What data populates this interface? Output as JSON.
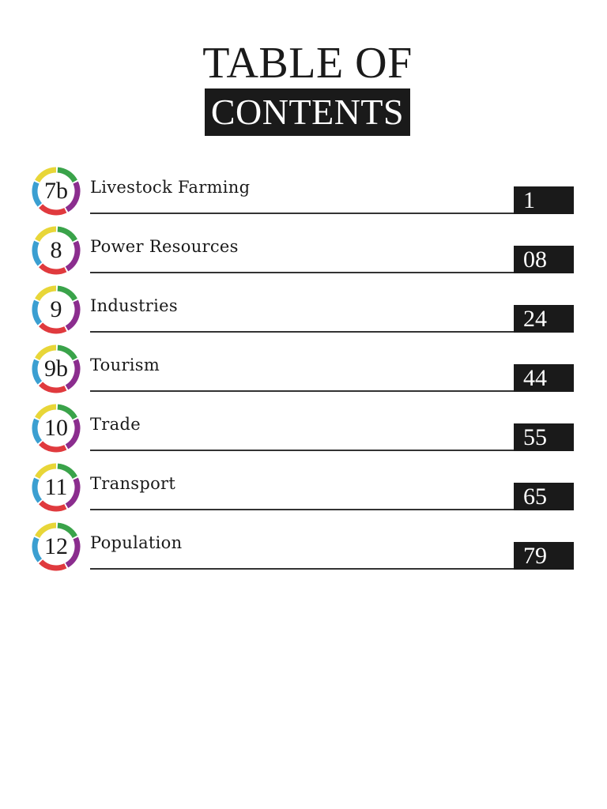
{
  "header": {
    "title_line1": "TABLE OF",
    "title_line2": "CONTENTS"
  },
  "ring_colors": [
    "#e8d638",
    "#3aa34a",
    "#8b2d8e",
    "#e03a3e",
    "#3b9fd1"
  ],
  "chapters": [
    {
      "number": "7b",
      "title": "Livestock Farming",
      "page": "1"
    },
    {
      "number": "8",
      "title": "Power Resources",
      "page": "08"
    },
    {
      "number": "9",
      "title": "Industries",
      "page": "24"
    },
    {
      "number": "9b",
      "title": "Tourism",
      "page": "44"
    },
    {
      "number": "10",
      "title": "Trade",
      "page": "55"
    },
    {
      "number": "11",
      "title": "Transport",
      "page": "65"
    },
    {
      "number": "12",
      "title": "Population",
      "page": "79"
    }
  ]
}
